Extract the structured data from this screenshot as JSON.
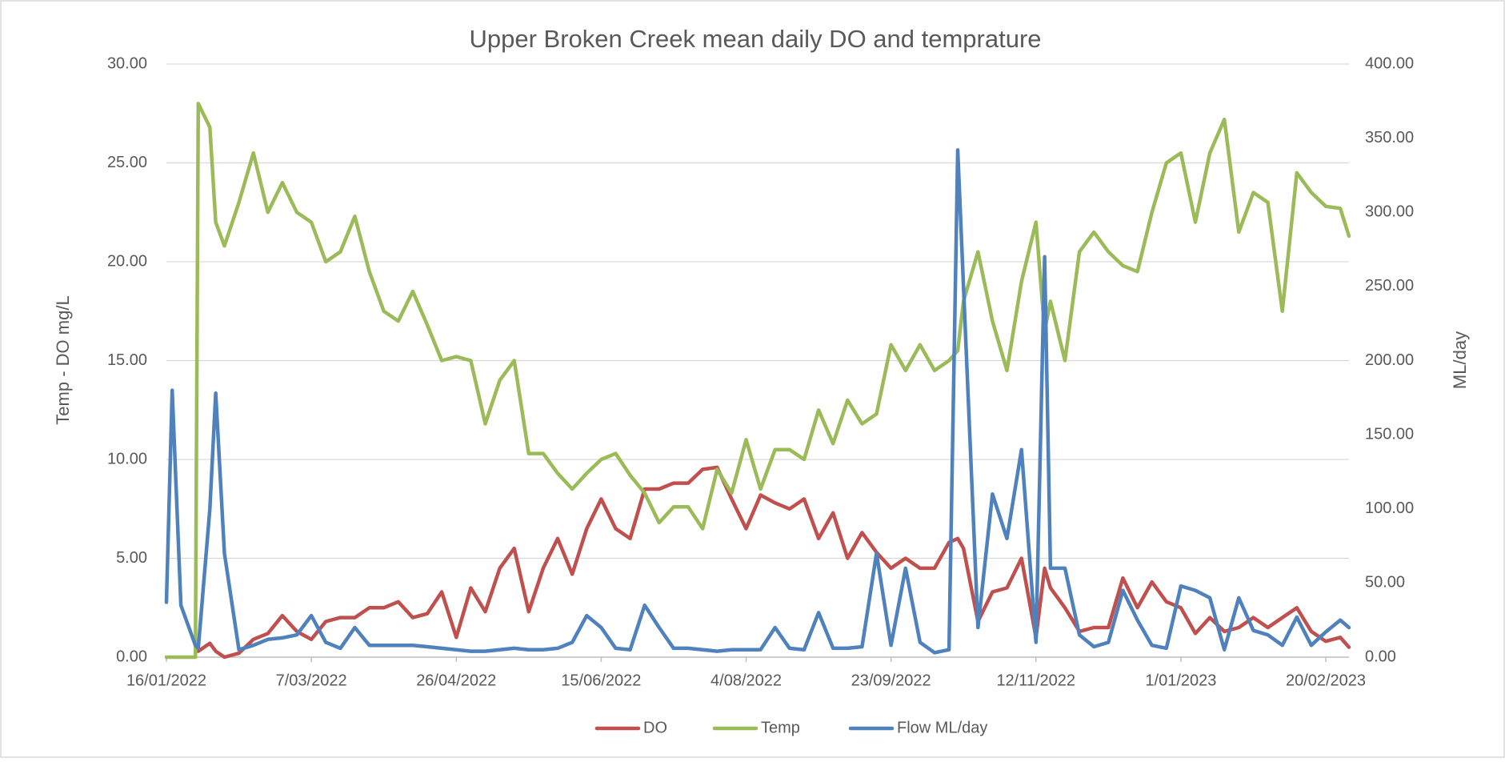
{
  "chart_data": {
    "type": "line",
    "title": "Upper Broken Creek mean daily DO and temprature",
    "ylabel": "Temp - DO mg/L",
    "y2label": "ML/day",
    "legend": "bottom",
    "grid": true,
    "xlim": [
      "2022-01-16",
      "2023-02-28"
    ],
    "xticks": [
      {
        "value": "2022-01-16",
        "label": "16/01/2022"
      },
      {
        "value": "2022-03-07",
        "label": "7/03/2022"
      },
      {
        "value": "2022-04-26",
        "label": "26/04/2022"
      },
      {
        "value": "2022-06-15",
        "label": "15/06/2022"
      },
      {
        "value": "2022-08-04",
        "label": "4/08/2022"
      },
      {
        "value": "2022-09-23",
        "label": "23/09/2022"
      },
      {
        "value": "2022-11-12",
        "label": "12/11/2022"
      },
      {
        "value": "2023-01-01",
        "label": "1/01/2023"
      },
      {
        "value": "2023-02-20",
        "label": "20/02/2023"
      }
    ],
    "ylim": [
      0,
      30
    ],
    "yticks": [
      {
        "value": 0,
        "label": "0.00"
      },
      {
        "value": 5,
        "label": "5.00"
      },
      {
        "value": 10,
        "label": "10.00"
      },
      {
        "value": 15,
        "label": "15.00"
      },
      {
        "value": 20,
        "label": "20.00"
      },
      {
        "value": 25,
        "label": "25.00"
      },
      {
        "value": 30,
        "label": "30.00"
      }
    ],
    "y2lim": [
      0,
      400
    ],
    "y2ticks": [
      {
        "value": 0,
        "label": "0.00"
      },
      {
        "value": 50,
        "label": "50.00"
      },
      {
        "value": 100,
        "label": "100.00"
      },
      {
        "value": 150,
        "label": "150.00"
      },
      {
        "value": 200,
        "label": "200.00"
      },
      {
        "value": 250,
        "label": "250.00"
      },
      {
        "value": 300,
        "label": "300.00"
      },
      {
        "value": 350,
        "label": "350.00"
      },
      {
        "value": 400,
        "label": "400.00"
      }
    ],
    "x": [
      "2022-01-16",
      "2022-01-18",
      "2022-01-21",
      "2022-01-26",
      "2022-01-27",
      "2022-01-31",
      "2022-02-02",
      "2022-02-05",
      "2022-02-10",
      "2022-02-15",
      "2022-02-20",
      "2022-02-25",
      "2022-03-02",
      "2022-03-07",
      "2022-03-12",
      "2022-03-17",
      "2022-03-22",
      "2022-03-27",
      "2022-04-01",
      "2022-04-06",
      "2022-04-11",
      "2022-04-16",
      "2022-04-21",
      "2022-04-26",
      "2022-05-01",
      "2022-05-06",
      "2022-05-11",
      "2022-05-16",
      "2022-05-21",
      "2022-05-26",
      "2022-05-31",
      "2022-06-05",
      "2022-06-10",
      "2022-06-15",
      "2022-06-20",
      "2022-06-25",
      "2022-06-30",
      "2022-07-05",
      "2022-07-10",
      "2022-07-15",
      "2022-07-20",
      "2022-07-25",
      "2022-07-30",
      "2022-08-04",
      "2022-08-09",
      "2022-08-14",
      "2022-08-19",
      "2022-08-24",
      "2022-08-29",
      "2022-09-03",
      "2022-09-08",
      "2022-09-13",
      "2022-09-18",
      "2022-09-23",
      "2022-09-28",
      "2022-10-03",
      "2022-10-08",
      "2022-10-13",
      "2022-10-16",
      "2022-10-18",
      "2022-10-23",
      "2022-10-28",
      "2022-11-02",
      "2022-11-07",
      "2022-11-12",
      "2022-11-15",
      "2022-11-17",
      "2022-11-22",
      "2022-11-27",
      "2022-12-02",
      "2022-12-07",
      "2022-12-12",
      "2022-12-17",
      "2022-12-22",
      "2022-12-27",
      "2023-01-01",
      "2023-01-06",
      "2023-01-11",
      "2023-01-16",
      "2023-01-21",
      "2023-01-26",
      "2023-01-31",
      "2023-02-05",
      "2023-02-10",
      "2023-02-15",
      "2023-02-20",
      "2023-02-25",
      "2023-02-28"
    ],
    "series": [
      {
        "name": "DO",
        "color": "#c0504d",
        "values": [
          null,
          null,
          null,
          0.7,
          0.3,
          0.7,
          0.3,
          0,
          0.2,
          0.9,
          1.2,
          2.1,
          1.3,
          0.9,
          1.8,
          2,
          2,
          2.5,
          2.5,
          2.8,
          2,
          2.2,
          3.3,
          1,
          3.5,
          2.3,
          4.5,
          5.5,
          2.3,
          4.5,
          6,
          4.2,
          6.5,
          8,
          6.5,
          6,
          8.5,
          8.5,
          8.8,
          8.8,
          9.5,
          9.6,
          8,
          6.5,
          8.2,
          7.8,
          7.5,
          8,
          6,
          7.3,
          5,
          6.3,
          5.3,
          4.5,
          5,
          4.5,
          4.5,
          5.8,
          6,
          5.5,
          1.8,
          3.3,
          3.5,
          5,
          1,
          4.5,
          3.5,
          2.5,
          1.3,
          1.5,
          1.5,
          4,
          2.5,
          3.8,
          2.8,
          2.5,
          1.2,
          2,
          1.3,
          1.5,
          2,
          1.5,
          2,
          2.5,
          1.3,
          0.8,
          1,
          0.5
        ]
      },
      {
        "name": "Temp",
        "color": "#9bbb59",
        "values": [
          0,
          0,
          0,
          0,
          28,
          26.8,
          22,
          20.8,
          23,
          25.5,
          22.5,
          24,
          22.5,
          22,
          20,
          20.5,
          22.3,
          19.5,
          17.5,
          17,
          18.5,
          16.8,
          15,
          15.2,
          15,
          11.8,
          14,
          15,
          10.3,
          10.3,
          9.3,
          8.5,
          9.3,
          10,
          10.3,
          9.2,
          8.3,
          6.8,
          7.6,
          7.6,
          6.5,
          9.5,
          8.3,
          11,
          8.5,
          10.5,
          10.5,
          10,
          12.5,
          10.8,
          13,
          11.8,
          12.3,
          15.8,
          14.5,
          15.8,
          14.5,
          15,
          15.5,
          18,
          20.5,
          17,
          14.5,
          19,
          22,
          16.5,
          18,
          15,
          20.5,
          21.5,
          20.5,
          19.8,
          19.5,
          22.5,
          25,
          25.5,
          22,
          25.5,
          27.2,
          21.5,
          23.5,
          23,
          17.5,
          24.5,
          23.5,
          22.8,
          22.7,
          21.3
        ]
      },
      {
        "name": "Flow ML/day",
        "color": "#4f81bd",
        "axis": "y2",
        "values": [
          37,
          180,
          35,
          8,
          6,
          100,
          178,
          70,
          5,
          8,
          12,
          13,
          15,
          28,
          10,
          6,
          20,
          8,
          8,
          8,
          8,
          7,
          6,
          5,
          4,
          4,
          5,
          6,
          5,
          5,
          6,
          10,
          28,
          20,
          6,
          5,
          35,
          20,
          6,
          6,
          5,
          4,
          5,
          5,
          5,
          20,
          6,
          5,
          30,
          6,
          6,
          7,
          70,
          8,
          60,
          10,
          3,
          5,
          342,
          250,
          20,
          110,
          80,
          140,
          10,
          270,
          60,
          60,
          15,
          7,
          10,
          45,
          25,
          8,
          6,
          48,
          45,
          40,
          5,
          40,
          18,
          15,
          8,
          27,
          8,
          17,
          25,
          20
        ]
      }
    ]
  }
}
